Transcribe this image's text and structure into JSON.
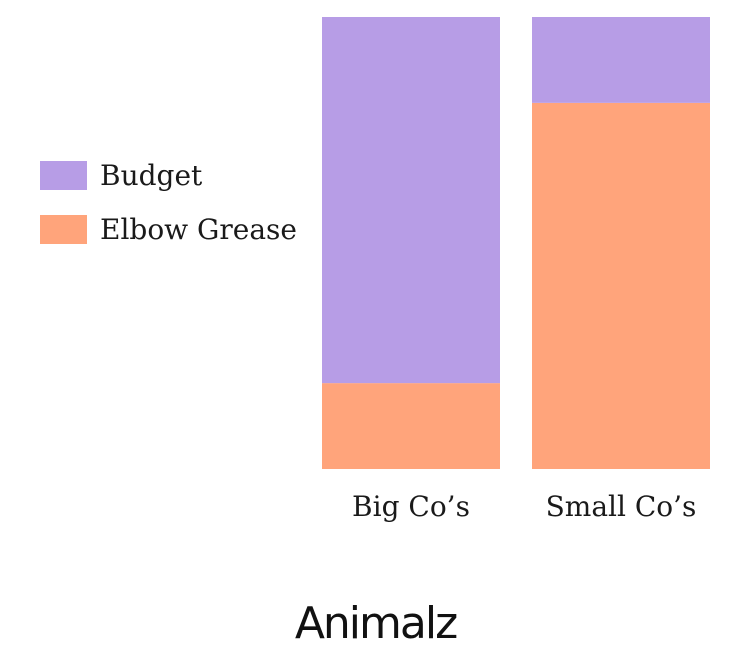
{
  "chart_data": {
    "type": "bar",
    "stacked": true,
    "normalized": true,
    "categories": [
      "Big Co’s",
      "Small Co’s"
    ],
    "series": [
      {
        "name": "Elbow Grease",
        "values": [
          19,
          81
        ],
        "color": "#ffa47b"
      },
      {
        "name": "Budget",
        "values": [
          81,
          19
        ],
        "color": "#b79de6"
      }
    ],
    "ylim": [
      0,
      100
    ],
    "grid": false,
    "axes_visible": false,
    "legend": "left"
  },
  "branding": {
    "logo_text": "Animalz"
  }
}
